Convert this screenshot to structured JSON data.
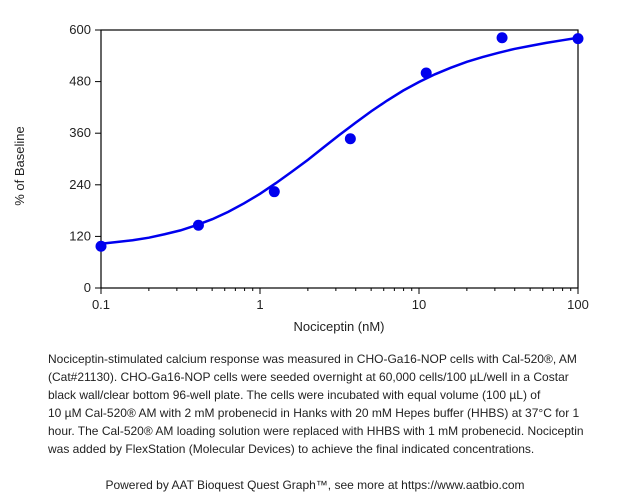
{
  "chart_data": {
    "type": "scatter",
    "title": "",
    "xlabel": "Nociceptin (nM)",
    "ylabel": "% of Baseline",
    "x_scale": "log",
    "xlim": [
      0.1,
      100
    ],
    "ylim": [
      0,
      600
    ],
    "x_ticks": [
      0.1,
      1,
      10,
      100
    ],
    "x_tick_labels": [
      "0.1",
      "1",
      "10",
      "100"
    ],
    "y_ticks": [
      0,
      120,
      240,
      360,
      480,
      600
    ],
    "y_tick_labels": [
      "0",
      "120",
      "240",
      "360",
      "480",
      "600"
    ],
    "grid": false,
    "legend": "none",
    "color": "#0000ee",
    "series": [
      {
        "x": [
          0.1,
          0.41,
          1.23,
          3.7,
          11.1,
          33.3,
          100
        ],
        "y": [
          97,
          146,
          224,
          347,
          500,
          582,
          580
        ]
      }
    ],
    "fit": {
      "x": [
        0.1,
        0.126,
        0.158,
        0.2,
        0.251,
        0.316,
        0.398,
        0.501,
        0.631,
        0.794,
        1,
        1.26,
        1.58,
        2,
        2.51,
        3.16,
        3.98,
        5.01,
        6.31,
        7.94,
        10,
        12.6,
        15.8,
        20,
        25.1,
        31.6,
        39.8,
        50.1,
        63.1,
        79.4,
        100
      ],
      "y": [
        103,
        107,
        111,
        117,
        125,
        134,
        146,
        160,
        177,
        197,
        219,
        244,
        270,
        298,
        327,
        356,
        384,
        411,
        436,
        459,
        479,
        497,
        512,
        526,
        537,
        547,
        556,
        563,
        570,
        576,
        582
      ]
    }
  },
  "caption": {
    "lines": [
      "Nociceptin-stimulated calcium response was measured in CHO-Ga16-NOP cells with Cal-520®, AM",
      "(Cat#21130). CHO-Ga16-NOP cells were seeded overnight at 60,000 cells/100 µL/well in a Costar",
      "black wall/clear bottom 96-well plate. The cells were incubated with equal volume (100 µL) of",
      "10 µM Cal-520® AM with 2 mM probenecid in Hanks with 20 mM Hepes buffer (HHBS) at 37°C for 1",
      "hour. The Cal-520® AM loading solution were replaced with HHBS with 1 mM probenecid. Nociceptin",
      "was added by FlexStation (Molecular Devices) to achieve the final indicated concentrations."
    ]
  },
  "footer": {
    "text": "Powered by AAT Bioquest Quest Graph™, see more at https://www.aatbio.com"
  }
}
